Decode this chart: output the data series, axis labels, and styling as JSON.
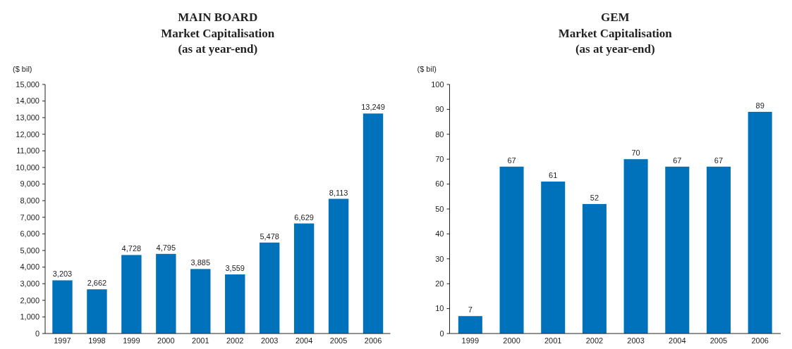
{
  "chart_data": [
    {
      "type": "bar",
      "title": "MAIN BOARD",
      "subtitle": "Market Capitalisation\n(as at year-end)",
      "ylabel": "($ bil)",
      "categories": [
        "1997",
        "1998",
        "1999",
        "2000",
        "2001",
        "2002",
        "2003",
        "2004",
        "2005",
        "2006"
      ],
      "values": [
        3203,
        2662,
        4728,
        4795,
        3885,
        3559,
        5478,
        6629,
        8113,
        13249
      ],
      "value_labels": [
        "3,203",
        "2,662",
        "4,728",
        "4,795",
        "3,885",
        "3,559",
        "5,478",
        "6,629",
        "8,113",
        "13,249"
      ],
      "color": "#0072bc",
      "ylim": [
        0,
        15000
      ],
      "yticks": [
        0,
        {
          "value": 1000,
          "label": "1,000"
        },
        {
          "value": 2000,
          "label": "2,000"
        },
        {
          "value": 3000,
          "label": "3,000"
        },
        {
          "value": 4000,
          "label": "4,000"
        },
        {
          "value": 5000,
          "label": "5,000"
        },
        {
          "value": 6000,
          "label": "6,000"
        },
        {
          "value": 7000,
          "label": "7,000"
        },
        {
          "value": 8000,
          "label": "8,000"
        },
        {
          "value": 9000,
          "label": "9,000"
        },
        {
          "value": 10000,
          "label": "10,000"
        },
        {
          "value": 11000,
          "label": "11,000"
        },
        {
          "value": 12000,
          "label": "12,000"
        },
        {
          "value": 13000,
          "label": "13,000"
        },
        {
          "value": 14000,
          "label": "14,000"
        },
        {
          "value": 15000,
          "label": "15,000"
        }
      ],
      "grid": false
    },
    {
      "type": "bar",
      "title": "GEM",
      "subtitle": "Market Capitalisation\n(as at year-end)",
      "ylabel": "($ bil)",
      "categories": [
        "1999",
        "2000",
        "2001",
        "2002",
        "2003",
        "2004",
        "2005",
        "2006"
      ],
      "values": [
        7,
        67,
        61,
        52,
        70,
        67,
        67,
        89
      ],
      "data_labels": true,
      "color": "#0072bc",
      "ylim": [
        0,
        100
      ],
      "yticks": [
        0,
        10,
        20,
        30,
        40,
        50,
        60,
        70,
        80,
        90,
        100
      ],
      "grid": false
    }
  ]
}
